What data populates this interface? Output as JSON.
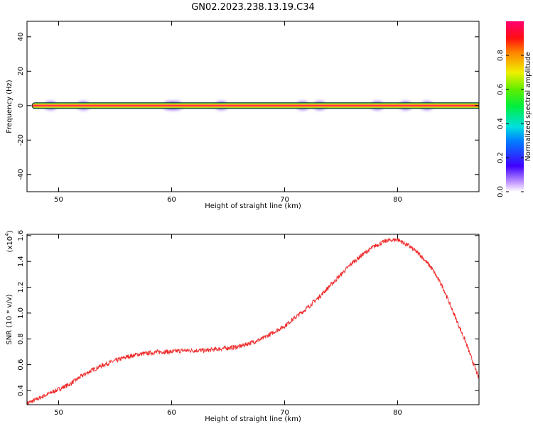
{
  "title": "GN02.2023.238.13.19.C34",
  "chart_data": [
    {
      "type": "heatmap",
      "xlabel": "Height of straight line (km)",
      "ylabel": "Frequency (Hz)",
      "xlim": [
        47.2,
        87.2
      ],
      "ylim": [
        -50,
        49
      ],
      "xticks": [
        "50",
        "60",
        "70",
        "80"
      ],
      "yticks": [
        "40",
        "20",
        "0",
        "-20",
        "-40"
      ],
      "band_frequency_hz": 0,
      "hotspots_km": [
        49.3,
        52.2,
        59.8,
        60.4,
        64.4,
        71.6,
        73.1,
        78.2,
        80.7,
        82.6
      ],
      "grid": false,
      "colorbar": {
        "label": "Normalized spectral amplitude",
        "ticks": [
          "0.0",
          "0.2",
          "0.4",
          "0.6",
          "0.8"
        ],
        "range": [
          0,
          1
        ],
        "colormap": "gist_rainbow_r"
      }
    },
    {
      "type": "line",
      "xlabel": "Height of straight line (km)",
      "ylabel": "SNR (10 * v/v)",
      "scale_label": "(x10",
      "scale_exp": "4",
      "scale_close": ")",
      "xlim": [
        47.2,
        87.2
      ],
      "ylim": [
        0.29,
        1.61
      ],
      "xticks": [
        "50",
        "60",
        "70",
        "80"
      ],
      "yticks": [
        "0.4",
        "0.6",
        "0.8",
        "1.0",
        "1.2",
        "1.4",
        "1.6"
      ],
      "line_color": "#ee2a2a",
      "series": [
        {
          "x": [
            47.2,
            48.0,
            49.0,
            50.0,
            51.0,
            52.0,
            53.0,
            54.0,
            55.0,
            56.0,
            57.0,
            58.0,
            59.0,
            60.0,
            61.0,
            62.0,
            63.0,
            64.0,
            65.0,
            66.0,
            67.0,
            68.0,
            69.0,
            70.0,
            71.0,
            72.0,
            73.0,
            74.0,
            75.0,
            76.0,
            77.0,
            78.0,
            79.0,
            80.0,
            81.0,
            82.0,
            83.0,
            84.0,
            85.0,
            86.0,
            87.2
          ],
          "values": [
            0.3,
            0.33,
            0.37,
            0.41,
            0.45,
            0.51,
            0.56,
            0.6,
            0.63,
            0.66,
            0.68,
            0.69,
            0.7,
            0.7,
            0.71,
            0.71,
            0.71,
            0.72,
            0.73,
            0.74,
            0.77,
            0.8,
            0.85,
            0.9,
            0.97,
            1.04,
            1.12,
            1.21,
            1.3,
            1.39,
            1.46,
            1.52,
            1.56,
            1.57,
            1.52,
            1.45,
            1.35,
            1.2,
            0.99,
            0.78,
            0.49
          ]
        }
      ]
    }
  ]
}
